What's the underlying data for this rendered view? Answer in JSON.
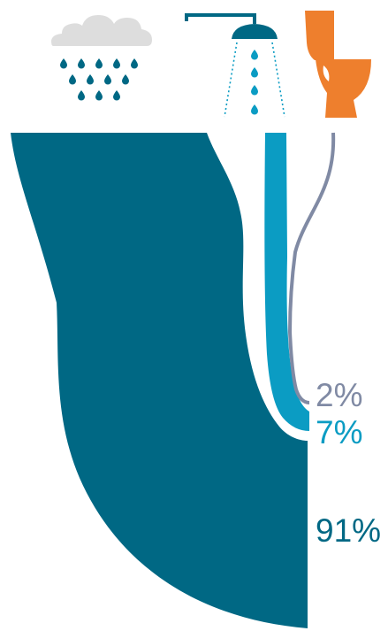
{
  "colors": {
    "rain": "#006884",
    "shower": "#0b9cc3",
    "toilet": "#808aa4",
    "toilet_icon": "#ee7f2d",
    "cloud": "#dddddd",
    "background": "#ffffff"
  },
  "icons": {
    "rain": "rain-cloud-icon",
    "shower": "shower-head-icon",
    "toilet": "toilet-icon"
  },
  "chart_data": {
    "type": "sankey",
    "title": "",
    "series": [
      {
        "name": "",
        "icon": "toilet-icon",
        "value": 2,
        "label": "2%",
        "color": "#808aa4"
      },
      {
        "name": "",
        "icon": "shower-head-icon",
        "value": 7,
        "label": "7%",
        "color": "#0b9cc3"
      },
      {
        "name": "",
        "icon": "rain-cloud-icon",
        "value": 91,
        "label": "91%",
        "color": "#006884"
      }
    ]
  }
}
